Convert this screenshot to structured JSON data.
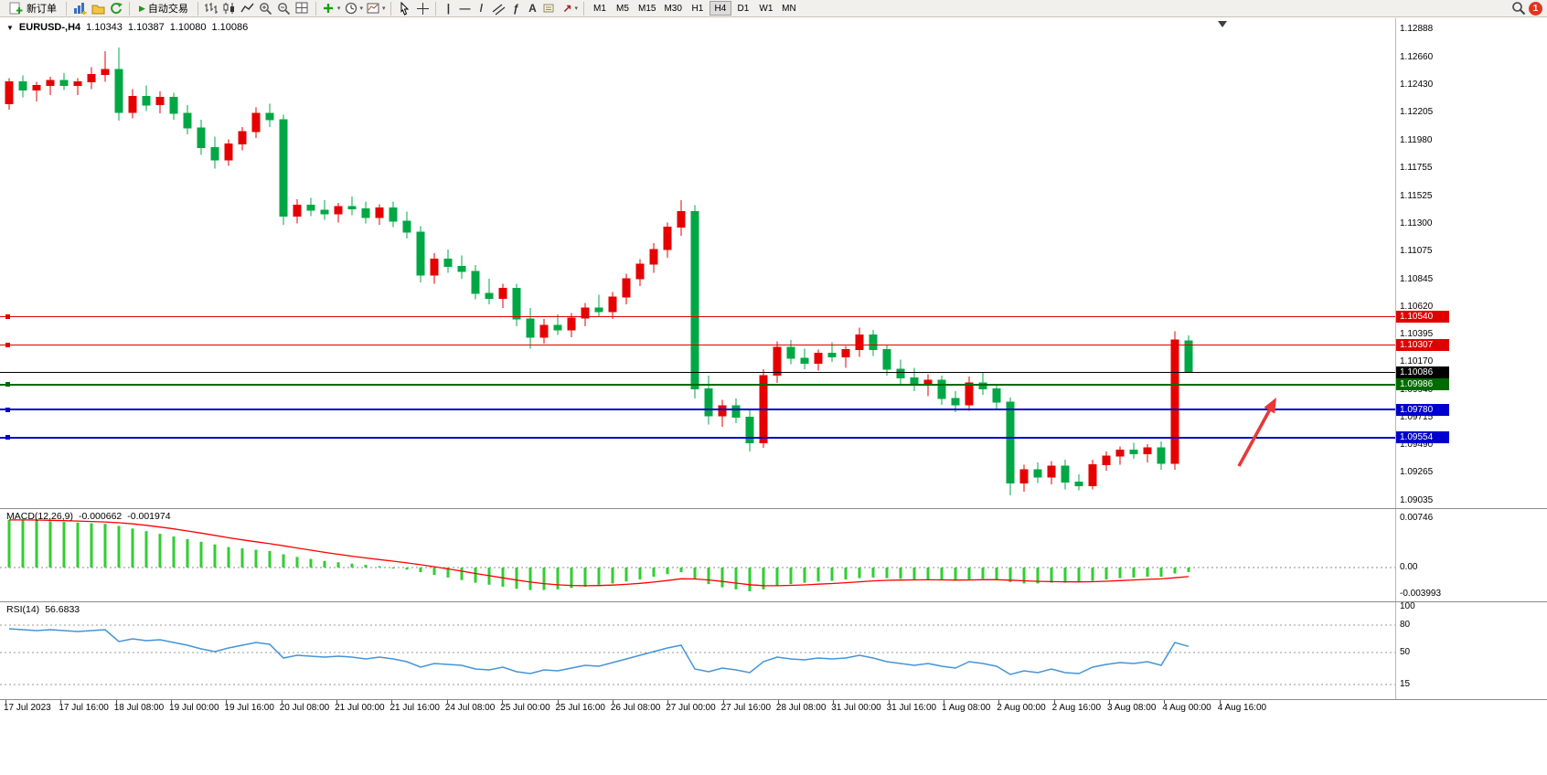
{
  "toolbar": {
    "new_order_label": "新订单",
    "autotrading_label": "自动交易",
    "timeframes": [
      "M1",
      "M5",
      "M15",
      "M30",
      "H1",
      "H4",
      "D1",
      "W1",
      "MN"
    ],
    "active_timeframe": "H4",
    "notification_count": "1"
  },
  "icons": {
    "symbol_caret": "▼",
    "dropdown_caret": "▾",
    "autotrading_play": "▶",
    "vertical_line": "|",
    "horizontal_line": "—",
    "trendline": "/",
    "fibonacci": "ƒ",
    "text_tool": "A",
    "arrow_tool": "↗"
  },
  "chart": {
    "title": "EURUSD-,H4",
    "ohlc": {
      "open": "1.10343",
      "high": "1.10387",
      "low": "1.10080",
      "close": "1.10086"
    },
    "current_price": "1.10086",
    "price_axis": [
      "1.12888",
      "1.12660",
      "1.12430",
      "1.12205",
      "1.11980",
      "1.11755",
      "1.11525",
      "1.11300",
      "1.11075",
      "1.10845",
      "1.10620",
      "1.10395",
      "1.10170",
      "1.09940",
      "1.09715",
      "1.09490",
      "1.09265",
      "1.09035"
    ],
    "levels": [
      {
        "value": "1.10540",
        "price": 1.1054,
        "color": "#e00000",
        "width": 1,
        "marker": true
      },
      {
        "value": "1.10307",
        "price": 1.10307,
        "color": "#e00000",
        "width": 1,
        "marker": true
      },
      {
        "value": "1.10086",
        "price": 1.10086,
        "color": "#000000",
        "width": 1,
        "marker": false
      },
      {
        "value": "1.09986",
        "price": 1.09986,
        "color": "#006b00",
        "width": 2,
        "marker": true
      },
      {
        "value": "1.09780",
        "price": 1.0978,
        "color": "#0000cc",
        "width": 2,
        "marker": true
      },
      {
        "value": "1.09554",
        "price": 1.09554,
        "color": "#0000cc",
        "width": 2,
        "marker": true
      }
    ],
    "time_axis": [
      "17 Jul 2023",
      "17 Jul 16:00",
      "18 Jul 08:00",
      "19 Jul 00:00",
      "19 Jul 16:00",
      "20 Jul 08:00",
      "21 Jul 00:00",
      "21 Jul 16:00",
      "24 Jul 08:00",
      "25 Jul 00:00",
      "25 Jul 16:00",
      "26 Jul 08:00",
      "27 Jul 00:00",
      "27 Jul 16:00",
      "28 Jul 08:00",
      "31 Jul 00:00",
      "31 Jul 16:00",
      "1 Aug 08:00",
      "2 Aug 00:00",
      "2 Aug 16:00",
      "3 Aug 08:00",
      "4 Aug 00:00",
      "4 Aug 16:00"
    ]
  },
  "macd": {
    "title": "MACD(12,26,9)",
    "main_value": "-0.000662",
    "signal_value": "-0.001974",
    "axis": [
      "0.00746",
      "0.00",
      "-0.003993"
    ]
  },
  "rsi": {
    "title": "RSI(14)",
    "value": "56.6833",
    "axis": [
      "100",
      "80",
      "50",
      "15"
    ],
    "levels": [
      80,
      50,
      15
    ]
  },
  "colors": {
    "bull": "#e60000",
    "bear": "#00a845",
    "macd_hist": "#32cd32",
    "macd_signal": "#ff0000",
    "rsi_line": "#4694d8",
    "arrow": "#e63939",
    "badge_text": "#ffffff"
  },
  "chart_data": {
    "type": "candlestick",
    "symbol": "EURUSD-",
    "timeframe": "H4",
    "price_range": [
      1.09035,
      1.12888
    ],
    "candles": [
      [
        1.1228,
        1.1249,
        1.1223,
        1.1246
      ],
      [
        1.1246,
        1.1251,
        1.1233,
        1.1239
      ],
      [
        1.1239,
        1.1246,
        1.123,
        1.1243
      ],
      [
        1.1243,
        1.125,
        1.1235,
        1.1247
      ],
      [
        1.1247,
        1.1253,
        1.1239,
        1.1243
      ],
      [
        1.1243,
        1.1249,
        1.1235,
        1.1246
      ],
      [
        1.1246,
        1.1258,
        1.124,
        1.1252
      ],
      [
        1.1252,
        1.1271,
        1.1246,
        1.1256
      ],
      [
        1.1256,
        1.1274,
        1.1214,
        1.1221
      ],
      [
        1.1221,
        1.124,
        1.1216,
        1.1234
      ],
      [
        1.1234,
        1.1243,
        1.1222,
        1.1227
      ],
      [
        1.1227,
        1.1238,
        1.122,
        1.1233
      ],
      [
        1.1233,
        1.1237,
        1.1215,
        1.122
      ],
      [
        1.122,
        1.1227,
        1.1203,
        1.1208
      ],
      [
        1.1208,
        1.1215,
        1.1186,
        1.1192
      ],
      [
        1.1192,
        1.1201,
        1.1175,
        1.1182
      ],
      [
        1.1182,
        1.1199,
        1.1177,
        1.1195
      ],
      [
        1.1195,
        1.1209,
        1.119,
        1.1205
      ],
      [
        1.1205,
        1.1225,
        1.12,
        1.122
      ],
      [
        1.122,
        1.1228,
        1.1209,
        1.1215
      ],
      [
        1.1215,
        1.1219,
        1.1129,
        1.1136
      ],
      [
        1.1136,
        1.115,
        1.113,
        1.1145
      ],
      [
        1.1145,
        1.1151,
        1.1136,
        1.1141
      ],
      [
        1.1141,
        1.1149,
        1.1133,
        1.1138
      ],
      [
        1.1138,
        1.1147,
        1.1131,
        1.1144
      ],
      [
        1.1144,
        1.1152,
        1.1137,
        1.1142
      ],
      [
        1.1142,
        1.1148,
        1.113,
        1.1135
      ],
      [
        1.1135,
        1.1146,
        1.1129,
        1.1143
      ],
      [
        1.1143,
        1.1148,
        1.1127,
        1.1132
      ],
      [
        1.1132,
        1.114,
        1.1118,
        1.1123
      ],
      [
        1.1123,
        1.1128,
        1.1082,
        1.1088
      ],
      [
        1.1088,
        1.1106,
        1.1081,
        1.1101
      ],
      [
        1.1101,
        1.1109,
        1.109,
        1.1095
      ],
      [
        1.1095,
        1.1104,
        1.1085,
        1.1091
      ],
      [
        1.1091,
        1.1096,
        1.1068,
        1.1073
      ],
      [
        1.1073,
        1.1085,
        1.1064,
        1.1069
      ],
      [
        1.1069,
        1.1081,
        1.1061,
        1.1077
      ],
      [
        1.1077,
        1.1081,
        1.1046,
        1.1052
      ],
      [
        1.1052,
        1.1061,
        1.1028,
        1.1037
      ],
      [
        1.1037,
        1.1052,
        1.1032,
        1.1047
      ],
      [
        1.1047,
        1.1056,
        1.1039,
        1.1043
      ],
      [
        1.1043,
        1.1057,
        1.1037,
        1.1053
      ],
      [
        1.1053,
        1.1065,
        1.1046,
        1.1061
      ],
      [
        1.1061,
        1.1072,
        1.1054,
        1.1058
      ],
      [
        1.1058,
        1.1074,
        1.1052,
        1.107
      ],
      [
        1.107,
        1.1089,
        1.1064,
        1.1085
      ],
      [
        1.1085,
        1.1101,
        1.1079,
        1.1097
      ],
      [
        1.1097,
        1.1114,
        1.109,
        1.1109
      ],
      [
        1.1109,
        1.1131,
        1.1102,
        1.1127
      ],
      [
        1.1127,
        1.1149,
        1.112,
        1.114
      ],
      [
        1.114,
        1.1145,
        1.0987,
        1.0995
      ],
      [
        1.0995,
        1.1006,
        1.0966,
        1.0973
      ],
      [
        1.0973,
        1.0986,
        1.0964,
        1.0981
      ],
      [
        1.0981,
        1.0987,
        1.0967,
        1.0972
      ],
      [
        1.0972,
        1.0978,
        1.0944,
        1.0951
      ],
      [
        1.0951,
        1.1011,
        1.0947,
        1.1006
      ],
      [
        1.1006,
        1.1034,
        1.1,
        1.1029
      ],
      [
        1.1029,
        1.1035,
        1.1015,
        1.102
      ],
      [
        1.102,
        1.1028,
        1.1011,
        1.1016
      ],
      [
        1.1016,
        1.1027,
        1.101,
        1.1024
      ],
      [
        1.1024,
        1.1033,
        1.1017,
        1.1021
      ],
      [
        1.1021,
        1.103,
        1.1012,
        1.1027
      ],
      [
        1.1027,
        1.1045,
        1.1021,
        1.1039
      ],
      [
        1.1039,
        1.1043,
        1.1022,
        1.1027
      ],
      [
        1.1027,
        1.1031,
        1.1006,
        1.1011
      ],
      [
        1.1011,
        1.1019,
        1.0999,
        1.1004
      ],
      [
        1.1004,
        1.1012,
        1.0993,
        1.0998
      ],
      [
        1.0998,
        1.1007,
        1.0989,
        1.1002
      ],
      [
        1.1002,
        1.1006,
        1.0982,
        1.0987
      ],
      [
        1.0987,
        1.0993,
        1.0976,
        1.0982
      ],
      [
        1.0982,
        1.1005,
        1.0977,
        1.1
      ],
      [
        1.1,
        1.1008,
        1.099,
        1.0995
      ],
      [
        1.0995,
        1.0999,
        1.0979,
        1.0984
      ],
      [
        1.0984,
        1.0988,
        1.0908,
        1.0918
      ],
      [
        1.0918,
        1.0933,
        1.0911,
        1.0929
      ],
      [
        1.0929,
        1.0935,
        1.0918,
        1.0923
      ],
      [
        1.0923,
        1.0936,
        1.0917,
        1.0932
      ],
      [
        1.0932,
        1.0937,
        1.0913,
        1.0919
      ],
      [
        1.0919,
        1.0925,
        1.0912,
        1.0916
      ],
      [
        1.0916,
        1.0937,
        1.0913,
        1.0933
      ],
      [
        1.0933,
        1.0944,
        1.0928,
        1.094
      ],
      [
        1.094,
        1.0948,
        1.0933,
        1.0945
      ],
      [
        1.0945,
        1.0951,
        1.0938,
        1.0942
      ],
      [
        1.0942,
        1.095,
        1.0935,
        1.0947
      ],
      [
        1.0947,
        1.0952,
        1.0929,
        1.0934
      ],
      [
        1.0934,
        1.1042,
        1.0929,
        1.1035
      ],
      [
        1.10343,
        1.10387,
        1.1008,
        1.10086
      ]
    ],
    "indicators": {
      "macd": {
        "params": "12,26,9",
        "main": [
          0.0072,
          0.0072,
          0.0071,
          0.007,
          0.0069,
          0.0068,
          0.0067,
          0.0066,
          0.0063,
          0.0059,
          0.0055,
          0.0051,
          0.0047,
          0.0043,
          0.0039,
          0.0035,
          0.0031,
          0.0029,
          0.0027,
          0.0025,
          0.002,
          0.0016,
          0.0013,
          0.001,
          0.0008,
          0.0006,
          0.0004,
          0.0002,
          0.0,
          -0.0003,
          -0.0007,
          -0.0011,
          -0.0015,
          -0.0019,
          -0.0023,
          -0.0026,
          -0.0029,
          -0.0032,
          -0.0034,
          -0.0034,
          -0.0033,
          -0.0031,
          -0.0029,
          -0.0026,
          -0.0024,
          -0.0021,
          -0.0018,
          -0.0014,
          -0.001,
          -0.0007,
          -0.0018,
          -0.0025,
          -0.003,
          -0.0033,
          -0.0036,
          -0.0033,
          -0.0028,
          -0.0025,
          -0.0023,
          -0.0021,
          -0.002,
          -0.0018,
          -0.0016,
          -0.0015,
          -0.0016,
          -0.0017,
          -0.0018,
          -0.0018,
          -0.0019,
          -0.002,
          -0.0018,
          -0.0017,
          -0.0018,
          -0.0022,
          -0.0024,
          -0.0024,
          -0.0023,
          -0.0023,
          -0.0022,
          -0.002,
          -0.0018,
          -0.0016,
          -0.0015,
          -0.0014,
          -0.0014,
          -0.0009,
          -0.000662
        ]
      },
      "rsi": {
        "params": "14",
        "values": [
          76,
          75,
          74,
          75,
          74,
          73,
          74,
          75,
          62,
          65,
          63,
          64,
          61,
          58,
          54,
          51,
          55,
          58,
          61,
          59,
          44,
          47,
          46,
          45,
          46,
          45,
          43,
          45,
          43,
          40,
          34,
          38,
          37,
          36,
          32,
          31,
          34,
          29,
          27,
          31,
          30,
          33,
          36,
          35,
          39,
          43,
          47,
          51,
          55,
          58,
          32,
          29,
          33,
          31,
          28,
          40,
          45,
          43,
          42,
          44,
          43,
          44,
          47,
          44,
          40,
          38,
          36,
          38,
          35,
          33,
          40,
          38,
          35,
          26,
          30,
          28,
          32,
          28,
          27,
          34,
          37,
          39,
          38,
          40,
          36,
          61,
          56.68
        ]
      }
    }
  }
}
